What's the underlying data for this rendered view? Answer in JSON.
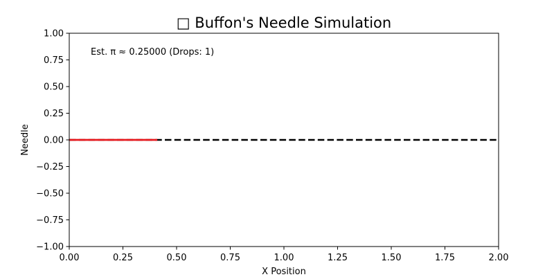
{
  "chart_data": {
    "type": "line",
    "title": "□ Buffon's Needle Simulation",
    "xlabel": "X Position",
    "ylabel": "Needle",
    "xlim": [
      0,
      2
    ],
    "ylim": [
      -1,
      1
    ],
    "x_ticks": [
      0,
      0.25,
      0.5,
      0.75,
      1,
      1.25,
      1.5,
      1.75,
      2
    ],
    "x_tick_labels": [
      "0.00",
      "0.25",
      "0.50",
      "0.75",
      "1.00",
      "1.25",
      "1.50",
      "1.75",
      "2.00"
    ],
    "y_ticks": [
      -1,
      -0.75,
      -0.5,
      -0.25,
      0,
      0.25,
      0.5,
      0.75,
      1
    ],
    "y_tick_labels": [
      "−1.00",
      "−0.75",
      "−0.50",
      "−0.25",
      "0.00",
      "0.25",
      "0.50",
      "0.75",
      "1.00"
    ],
    "grid": false,
    "annotation": "Est. π ≈ 0.25000 (Drops: 1)",
    "series": [
      {
        "style": "dashed",
        "color": "#000000",
        "x": [
          0,
          2
        ],
        "y": [
          0,
          0
        ]
      },
      {
        "style": "solid",
        "color": "#e8191e",
        "x": [
          0,
          0.41
        ],
        "y": [
          0,
          0
        ]
      }
    ]
  }
}
